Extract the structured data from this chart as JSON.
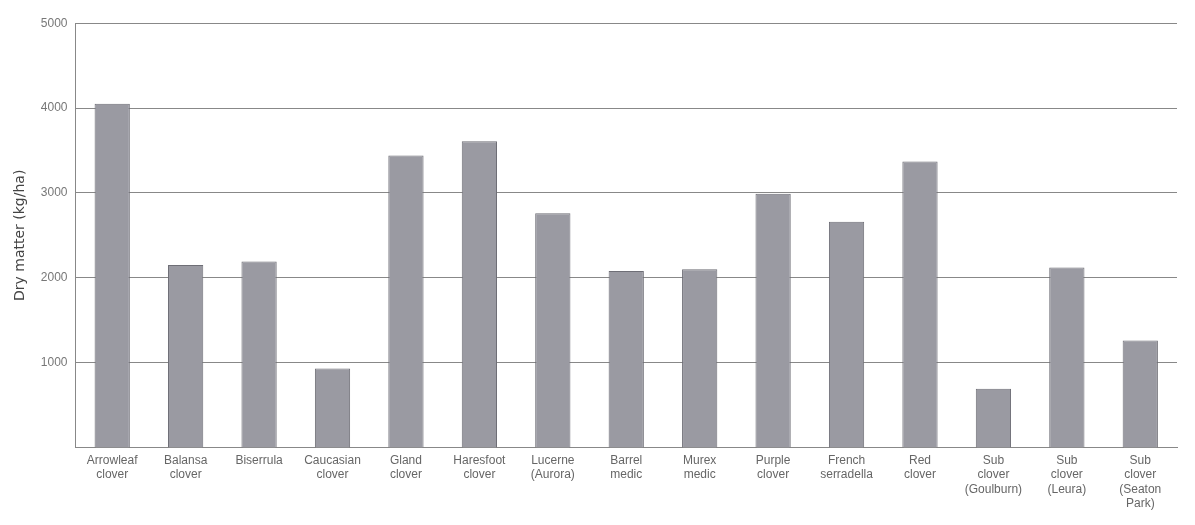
{
  "chart_data": {
    "type": "bar",
    "ylabel": "Dry matter (kg/ha)",
    "categories": [
      "Arrowleaf\nclover",
      "Balansa\nclover",
      "Biserrula",
      "Caucasian\nclover",
      "Gland\nclover",
      "Haresfoot\nclover",
      "Lucerne\n(Aurora)",
      "Barrel\nmedic",
      "Murex\nmedic",
      "Purple\nclover",
      "French\nserradella",
      "Red\nclover",
      "Sub\nclover\n(Goulburn)",
      "Sub\nclover\n(Leura)",
      "Sub\nclover\n(Seaton\nPark)"
    ],
    "values": [
      4050,
      2150,
      2190,
      930,
      3440,
      3610,
      2760,
      2080,
      2100,
      2990,
      2660,
      3370,
      690,
      2120,
      1260
    ],
    "color": "#9a9aa2",
    "ylim": [
      0,
      5000
    ],
    "yticks": [
      1000,
      2000,
      3000,
      4000,
      5000
    ],
    "grid": "y"
  }
}
